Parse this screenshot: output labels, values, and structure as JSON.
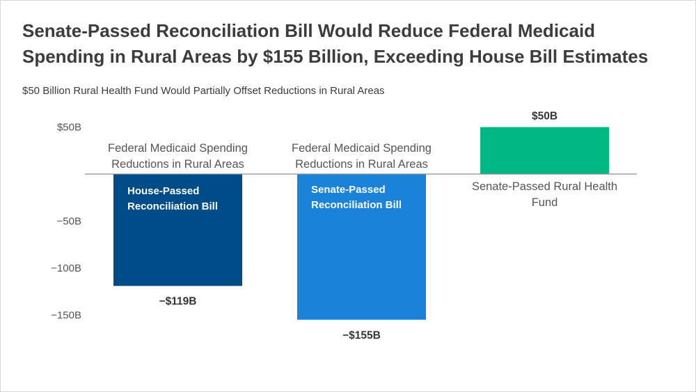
{
  "chart_data": {
    "type": "bar",
    "title": "Senate-Passed Reconciliation Bill Would Reduce Federal Medicaid Spending in Rural Areas by $155 Billion, Exceeding House Bill Estimates",
    "subtitle": "$50 Billion Rural Health Fund Would Partially Offset Reductions in Rural Areas",
    "xlabel": "",
    "ylabel": "",
    "ylim": [
      -150,
      50
    ],
    "yticks": [
      {
        "value": 50,
        "label": "$50B"
      },
      {
        "value": -50,
        "label": "−50B"
      },
      {
        "value": -100,
        "label": "−100B"
      },
      {
        "value": -150,
        "label": "−150B"
      }
    ],
    "categories": [
      "Federal Medicaid Spending Reductions in Rural Areas",
      "Federal Medicaid Spending Reductions in Rural Areas",
      "Senate-Passed Rural Health Fund"
    ],
    "bars": [
      {
        "key": "house",
        "value": -119,
        "value_label": "−$119B",
        "category_label_lines": [
          "Federal Medicaid Spending",
          "Reductions in Rural Areas"
        ],
        "inbar_label_lines": [
          "House-Passed",
          "Reconciliation Bill"
        ],
        "color": "#004c88"
      },
      {
        "key": "senate",
        "value": -155,
        "value_label": "−$155B",
        "category_label_lines": [
          "Federal Medicaid Spending",
          "Reductions in Rural Areas"
        ],
        "inbar_label_lines": [
          "Senate-Passed",
          "Reconciliation Bill"
        ],
        "color": "#1a82d8"
      },
      {
        "key": "fund",
        "value": 50,
        "value_label": "$50B",
        "category_label_lines": [
          "Senate-Passed Rural Health",
          "Fund"
        ],
        "inbar_label_lines": [],
        "color": "#00b884"
      }
    ],
    "zero_line_color": "#8c8c8c",
    "grid": false,
    "legend": "none"
  }
}
